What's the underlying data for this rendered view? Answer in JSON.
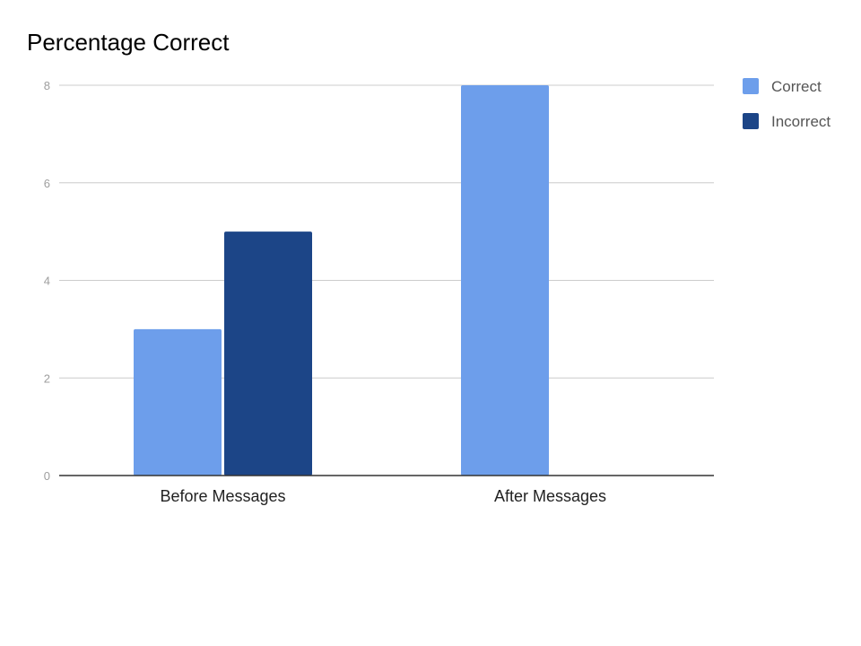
{
  "chart_data": {
    "type": "bar",
    "title": "Percentage Correct",
    "xlabel": "",
    "ylabel": "",
    "categories": [
      "Before Messages",
      "After Messages"
    ],
    "series": [
      {
        "name": "Correct",
        "values": [
          3,
          8
        ],
        "color": "#6d9eeb"
      },
      {
        "name": "Incorrect",
        "values": [
          5,
          0
        ],
        "color": "#1c4587"
      }
    ],
    "ylim": [
      0,
      8
    ],
    "yticks": [
      0,
      2,
      4,
      6,
      8
    ],
    "grid": true,
    "legend_position": "right"
  }
}
